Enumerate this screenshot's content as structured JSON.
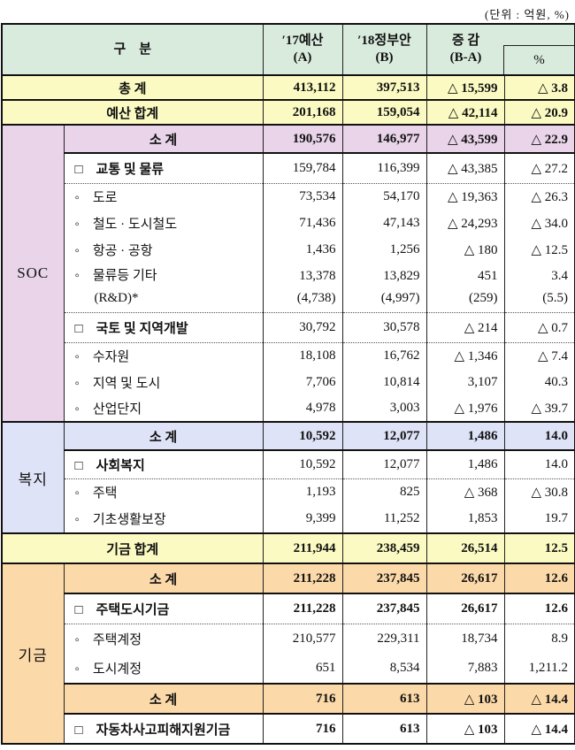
{
  "caption": "(단위 : 억원, %)",
  "colors": {
    "header_bg": "#d9ebdd",
    "summary_row_bg": "#fafac2",
    "soc_bg": "#e9d4e9",
    "welfare_bg": "#dfe3f7",
    "fund_bg": "#fcd9a9"
  },
  "table": {
    "header": {
      "category": "구　분",
      "a1": "′17예산",
      "a2": "(A)",
      "b1": "′18정부안",
      "b2": "(B)",
      "d1": "증 감",
      "d2": "(B-A)",
      "pct": "%"
    },
    "groups": {
      "soc": "SOC",
      "welfare": "복지",
      "fund": "기금"
    },
    "rows": [
      {
        "label": "총 계",
        "a": "413,112",
        "b": "397,513",
        "d": "△ 15,599",
        "p": "△ 3.8"
      },
      {
        "label": "예산 합계",
        "a": "201,168",
        "b": "159,054",
        "d": "△ 42,114",
        "p": "△ 20.9"
      },
      {
        "label": "소 계",
        "a": "190,576",
        "b": "146,977",
        "d": "△ 43,599",
        "p": "△ 22.9"
      },
      {
        "label": "□　교통 및 물류",
        "a": "159,784",
        "b": "116,399",
        "d": "△ 43,385",
        "p": "△ 27.2"
      },
      {
        "label": "◦　도로",
        "a": "73,534",
        "b": "54,170",
        "d": "△ 19,363",
        "p": "△ 26.3"
      },
      {
        "label": "◦　철도 · 도시철도",
        "a": "71,436",
        "b": "47,143",
        "d": "△ 24,293",
        "p": "△ 34.0"
      },
      {
        "label": "◦　항공 · 공항",
        "a": "1,436",
        "b": "1,256",
        "d": "△ 180",
        "p": "△ 12.5"
      },
      {
        "label": "◦　물류등 기타",
        "label2": "(R&D)*",
        "a": "13,378",
        "a2": "(4,738)",
        "b": "13,829",
        "b2": "(4,997)",
        "d": "451",
        "d2": "(259)",
        "p": "3.4",
        "p2": "(5.5)"
      },
      {
        "label": "□　국토 및 지역개발",
        "a": "30,792",
        "b": "30,578",
        "d": "△ 214",
        "p": "△ 0.7"
      },
      {
        "label": "◦　수자원",
        "a": "18,108",
        "b": "16,762",
        "d": "△ 1,346",
        "p": "△ 7.4"
      },
      {
        "label": "◦　지역 및 도시",
        "a": "7,706",
        "b": "10,814",
        "d": "3,107",
        "p": "40.3"
      },
      {
        "label": "◦　산업단지",
        "a": "4,978",
        "b": "3,003",
        "d": "△ 1,976",
        "p": "△ 39.7"
      },
      {
        "label": "소 계",
        "a": "10,592",
        "b": "12,077",
        "d": "1,486",
        "p": "14.0"
      },
      {
        "label": "□　사회복지",
        "a": "10,592",
        "b": "12,077",
        "d": "1,486",
        "p": "14.0"
      },
      {
        "label": "◦　주택",
        "a": "1,193",
        "b": "825",
        "d": "△ 368",
        "p": "△ 30.8"
      },
      {
        "label": "◦　기초생활보장",
        "a": "9,399",
        "b": "11,252",
        "d": "1,853",
        "p": "19.7"
      },
      {
        "label": "기금 합계",
        "a": "211,944",
        "b": "238,459",
        "d": "26,514",
        "p": "12.5"
      },
      {
        "label": "소 계",
        "a": "211,228",
        "b": "237,845",
        "d": "26,617",
        "p": "12.6"
      },
      {
        "label": "□　주택도시기금",
        "a": "211,228",
        "b": "237,845",
        "d": "26,617",
        "p": "12.6"
      },
      {
        "label": "◦　주택계정",
        "a": "210,577",
        "b": "229,311",
        "d": "18,734",
        "p": "8.9"
      },
      {
        "label": "◦　도시계정",
        "a": "651",
        "b": "8,534",
        "d": "7,883",
        "p": "1,211.2"
      },
      {
        "label": "소 계",
        "a": "716",
        "b": "613",
        "d": "△ 103",
        "p": "△ 14.4"
      },
      {
        "label": "□　자동차사고피해지원기금",
        "a": "716",
        "b": "613",
        "d": "△ 103",
        "p": "△ 14.4"
      }
    ]
  }
}
